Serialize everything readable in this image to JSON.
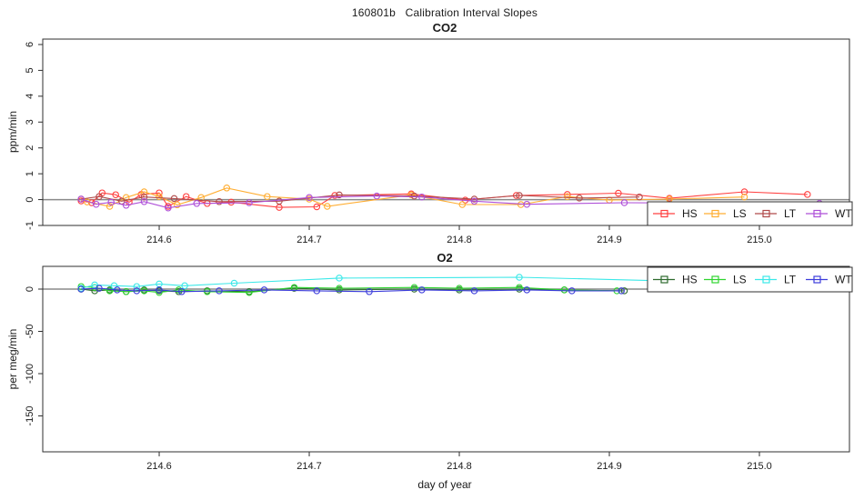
{
  "main_title": "160801b   Calibration Interval Slopes",
  "chart_data": [
    {
      "type": "line",
      "title": "CO2",
      "ylabel": "ppm/min",
      "xlabel": "",
      "xlim": [
        214.5224,
        215.06
      ],
      "ylim": [
        -1.0,
        6.21
      ],
      "xticks": [
        214.6,
        214.7,
        214.8,
        214.9,
        215.0
      ],
      "xtick_labels": [
        "214.6",
        "214.7",
        "214.8",
        "214.9",
        "215.0"
      ],
      "yticks": [
        -1,
        0,
        1,
        2,
        3,
        4,
        5,
        6
      ],
      "ytick_labels": [
        "-1",
        "0",
        "1",
        "2",
        "3",
        "4",
        "5",
        "6"
      ],
      "zero_line": true,
      "grid": false,
      "legend_position": "bottom-right",
      "marker": "open-circle",
      "series": [
        {
          "name": "HS",
          "color": "#ff4040",
          "points": [
            [
              214.548,
              -0.05
            ],
            [
              214.555,
              -0.12
            ],
            [
              214.562,
              0.26
            ],
            [
              214.571,
              0.19
            ],
            [
              214.58,
              -0.1
            ],
            [
              214.588,
              0.2
            ],
            [
              214.6,
              0.26
            ],
            [
              214.606,
              -0.26
            ],
            [
              214.618,
              0.12
            ],
            [
              214.632,
              -0.15
            ],
            [
              214.648,
              -0.1
            ],
            [
              214.68,
              -0.3
            ],
            [
              214.705,
              -0.28
            ],
            [
              214.717,
              0.16
            ],
            [
              214.768,
              0.22
            ],
            [
              214.804,
              -0.02
            ],
            [
              214.838,
              0.16
            ],
            [
              214.872,
              0.2
            ],
            [
              214.906,
              0.25
            ],
            [
              214.94,
              0.05
            ],
            [
              214.99,
              0.3
            ],
            [
              215.032,
              0.2
            ]
          ]
        },
        {
          "name": "LS",
          "color": "#ffae33",
          "points": [
            [
              214.552,
              -0.09
            ],
            [
              214.567,
              -0.26
            ],
            [
              214.578,
              0.08
            ],
            [
              214.59,
              0.3
            ],
            [
              214.6,
              0.12
            ],
            [
              214.612,
              -0.2
            ],
            [
              214.628,
              0.08
            ],
            [
              214.645,
              0.45
            ],
            [
              214.672,
              0.12
            ],
            [
              214.7,
              0.02
            ],
            [
              214.712,
              -0.26
            ],
            [
              214.768,
              0.18
            ],
            [
              214.802,
              -0.19
            ],
            [
              214.841,
              -0.19
            ],
            [
              214.872,
              0.12
            ],
            [
              214.9,
              -0.02
            ],
            [
              214.94,
              0.02
            ],
            [
              214.99,
              0.1
            ]
          ]
        },
        {
          "name": "LT",
          "color": "#b04a4a",
          "points": [
            [
              214.548,
              0.02
            ],
            [
              214.56,
              0.12
            ],
            [
              214.575,
              -0.06
            ],
            [
              214.59,
              0.1
            ],
            [
              214.61,
              0.04
            ],
            [
              214.64,
              -0.08
            ],
            [
              214.68,
              -0.06
            ],
            [
              214.72,
              0.18
            ],
            [
              214.77,
              0.14
            ],
            [
              214.81,
              0.02
            ],
            [
              214.84,
              0.16
            ],
            [
              214.88,
              0.06
            ],
            [
              214.92,
              0.1
            ]
          ]
        },
        {
          "name": "WT",
          "color": "#ae4fd8",
          "points": [
            [
              214.548,
              0.02
            ],
            [
              214.558,
              -0.18
            ],
            [
              214.568,
              -0.1
            ],
            [
              214.578,
              -0.22
            ],
            [
              214.59,
              -0.08
            ],
            [
              214.606,
              -0.32
            ],
            [
              214.625,
              -0.15
            ],
            [
              214.66,
              -0.12
            ],
            [
              214.7,
              0.08
            ],
            [
              214.745,
              0.14
            ],
            [
              214.775,
              0.1
            ],
            [
              214.81,
              -0.06
            ],
            [
              214.845,
              -0.18
            ],
            [
              214.91,
              -0.12
            ],
            [
              215.04,
              -0.15
            ]
          ]
        }
      ]
    },
    {
      "type": "line",
      "title": "O2",
      "ylabel": "per meg/min",
      "xlabel": "day of year",
      "xlim": [
        214.5224,
        215.06
      ],
      "ylim": [
        -192.5,
        26.9
      ],
      "xticks": [
        214.6,
        214.7,
        214.8,
        214.9,
        215.0
      ],
      "xtick_labels": [
        "214.6",
        "214.7",
        "214.8",
        "214.9",
        "215.0"
      ],
      "yticks": [
        0,
        -50,
        -100,
        -150
      ],
      "ytick_labels": [
        "0",
        "-50",
        "-100",
        "-150"
      ],
      "zero_line": true,
      "grid": false,
      "legend_position": "top-right",
      "marker": "open-circle",
      "series": [
        {
          "name": "HS",
          "color": "#2e6b2e",
          "points": [
            [
              214.548,
              0
            ],
            [
              214.557,
              -2
            ],
            [
              214.567,
              -1
            ],
            [
              214.578,
              -3
            ],
            [
              214.59,
              -1
            ],
            [
              214.6,
              -2
            ],
            [
              214.613,
              -3
            ],
            [
              214.632,
              -2
            ],
            [
              214.66,
              -3
            ],
            [
              214.69,
              1
            ],
            [
              214.72,
              -1
            ],
            [
              214.77,
              0
            ],
            [
              214.8,
              -1
            ],
            [
              214.84,
              0
            ],
            [
              214.87,
              -1
            ],
            [
              214.91,
              -2
            ]
          ]
        },
        {
          "name": "LS",
          "color": "#2fd42f",
          "points": [
            [
              214.548,
              3
            ],
            [
              214.557,
              2
            ],
            [
              214.567,
              -2
            ],
            [
              214.578,
              -3
            ],
            [
              214.59,
              -2
            ],
            [
              214.6,
              -4
            ],
            [
              214.613,
              -1
            ],
            [
              214.632,
              -3
            ],
            [
              214.66,
              -4
            ],
            [
              214.69,
              2
            ],
            [
              214.72,
              1
            ],
            [
              214.77,
              2
            ],
            [
              214.8,
              1
            ],
            [
              214.84,
              2
            ],
            [
              214.87,
              -1
            ],
            [
              214.905,
              -2
            ]
          ]
        },
        {
          "name": "LT",
          "color": "#3ae8e8",
          "points": [
            [
              214.548,
              1
            ],
            [
              214.557,
              5
            ],
            [
              214.57,
              4
            ],
            [
              214.585,
              3
            ],
            [
              214.6,
              6
            ],
            [
              214.617,
              4
            ],
            [
              214.65,
              7
            ],
            [
              214.72,
              13
            ],
            [
              214.84,
              14
            ],
            [
              214.93,
              10
            ],
            [
              215.02,
              5
            ]
          ]
        },
        {
          "name": "WT",
          "color": "#3c3cdb",
          "points": [
            [
              214.548,
              0
            ],
            [
              214.56,
              1
            ],
            [
              214.572,
              -1
            ],
            [
              214.585,
              -2
            ],
            [
              214.6,
              -1
            ],
            [
              214.615,
              -3
            ],
            [
              214.64,
              -2
            ],
            [
              214.67,
              -1
            ],
            [
              214.705,
              -2
            ],
            [
              214.74,
              -3
            ],
            [
              214.775,
              -1
            ],
            [
              214.81,
              -2
            ],
            [
              214.845,
              -1
            ],
            [
              214.875,
              -2
            ],
            [
              214.908,
              -2
            ]
          ]
        }
      ]
    }
  ],
  "colors": {
    "axis": "#2f2f2f",
    "zero_line": "#8a8a8a",
    "background": "#ffffff"
  }
}
